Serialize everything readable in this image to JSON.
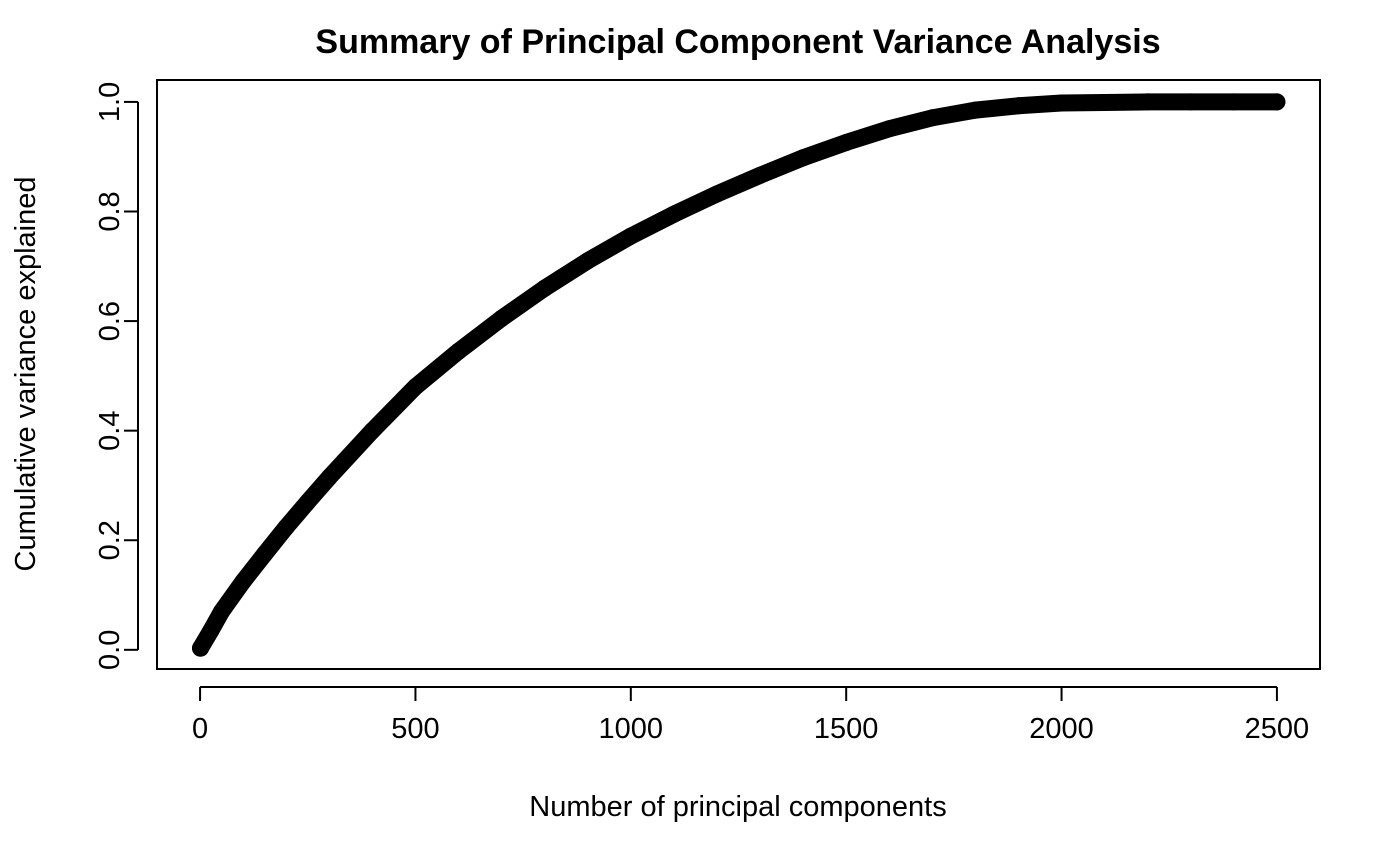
{
  "chart_data": {
    "type": "scatter",
    "title": "Summary of Principal Component Variance Analysis",
    "xlabel": "Number of principal components",
    "ylabel": "Cumulative variance explained",
    "xlim": [
      -100,
      2600
    ],
    "ylim": [
      -0.035,
      1.04
    ],
    "x_ticks": [
      0,
      500,
      1000,
      1500,
      2000,
      2500
    ],
    "y_ticks": [
      0.0,
      0.2,
      0.4,
      0.6,
      0.8,
      1.0
    ],
    "x_tick_labels": [
      "0",
      "500",
      "1000",
      "1500",
      "2000",
      "2500"
    ],
    "y_tick_labels": [
      "0.0",
      "0.2",
      "0.4",
      "0.6",
      "0.8",
      "1.0"
    ],
    "grid": false,
    "legend": "none",
    "point_color": "#000000",
    "series": [
      {
        "x": [
          1,
          25,
          50,
          100,
          150,
          200,
          250,
          300,
          400,
          500,
          600,
          700,
          800,
          900,
          1000,
          1100,
          1200,
          1300,
          1400,
          1500,
          1600,
          1700,
          1800,
          1900,
          2000,
          2100,
          2200,
          2300,
          2400,
          2500
        ],
        "y": [
          0.003,
          0.035,
          0.07,
          0.125,
          0.175,
          0.224,
          0.27,
          0.315,
          0.4,
          0.48,
          0.545,
          0.605,
          0.66,
          0.71,
          0.755,
          0.795,
          0.832,
          0.866,
          0.898,
          0.926,
          0.951,
          0.971,
          0.985,
          0.993,
          0.998,
          0.999,
          1.0,
          1.0,
          1.0,
          1.0
        ]
      }
    ]
  }
}
